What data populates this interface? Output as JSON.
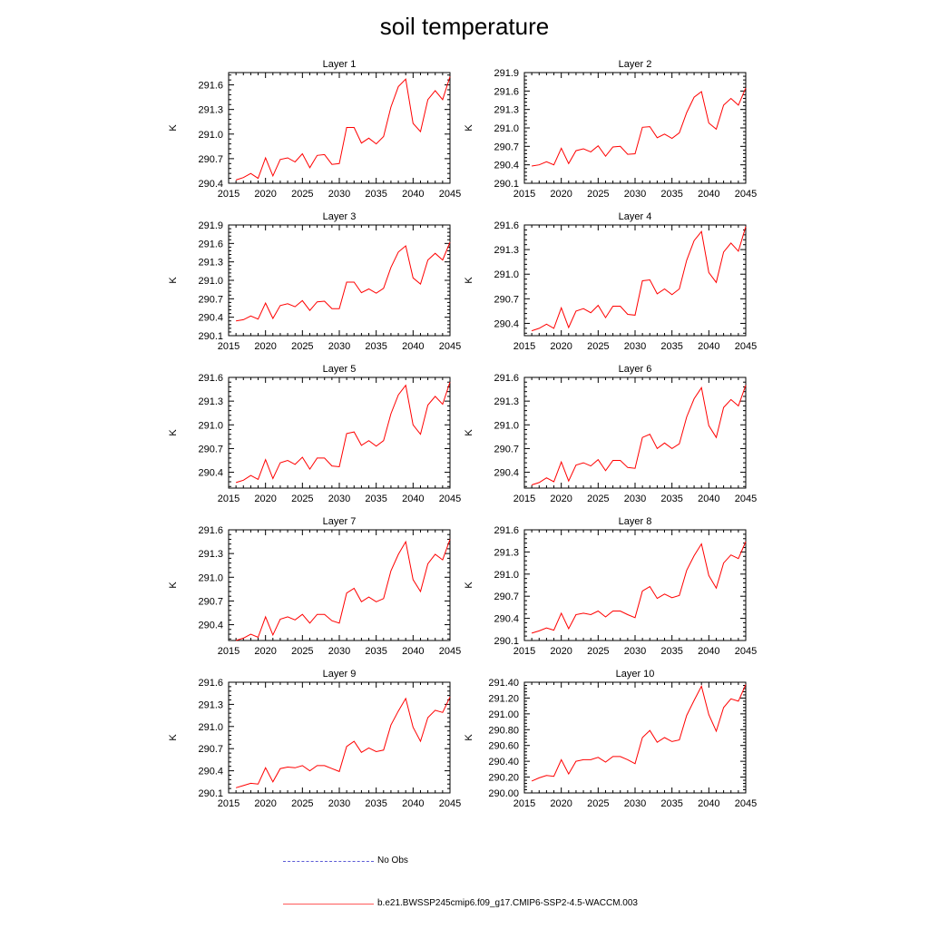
{
  "title": "soil temperature",
  "legend": [
    {
      "label": "No Obs",
      "color": "#5b5bd6",
      "dashed": true
    },
    {
      "label": "b.e21.BWSSP245cmip6.f09_g17.CMIP6-SSP2-4.5-WACCM.003",
      "color": "#ff5a5a",
      "dashed": false
    }
  ],
  "chart_data": [
    {
      "type": "line",
      "title": "Layer 1",
      "xlabel": "",
      "ylabel": "K",
      "xlim": [
        2015,
        2045
      ],
      "ylim": [
        290.4,
        291.75
      ],
      "xticks": [
        "2015",
        "2020",
        "2025",
        "2030",
        "2035",
        "2040",
        "2045"
      ],
      "yticks": [
        "290.4",
        "290.7",
        "291.0",
        "291.3",
        "291.6"
      ],
      "x": [
        2016,
        2017,
        2018,
        2019,
        2020,
        2021,
        2022,
        2023,
        2024,
        2025,
        2026,
        2027,
        2028,
        2029,
        2030,
        2031,
        2032,
        2033,
        2034,
        2035,
        2036,
        2037,
        2038,
        2039,
        2040,
        2041,
        2042,
        2043,
        2044,
        2045
      ],
      "series": [
        {
          "values": [
            290.44,
            290.47,
            290.52,
            290.46,
            290.71,
            290.49,
            290.69,
            290.71,
            290.66,
            290.76,
            290.59,
            290.74,
            290.75,
            290.63,
            290.64,
            291.08,
            291.08,
            290.89,
            290.95,
            290.88,
            290.97,
            291.33,
            291.58,
            291.67,
            291.13,
            291.03,
            291.42,
            291.53,
            291.42,
            291.7
          ],
          "color": "#ff0000"
        }
      ]
    },
    {
      "type": "line",
      "title": "Layer 2",
      "xlabel": "",
      "ylabel": "K",
      "xlim": [
        2015,
        2045
      ],
      "ylim": [
        290.1,
        291.9
      ],
      "xticks": [
        "2015",
        "2020",
        "2025",
        "2030",
        "2035",
        "2040",
        "2045"
      ],
      "yticks": [
        "290.1",
        "290.4",
        "290.7",
        "291.0",
        "291.3",
        "291.6",
        "291.9"
      ],
      "x": [
        2016,
        2017,
        2018,
        2019,
        2020,
        2021,
        2022,
        2023,
        2024,
        2025,
        2026,
        2027,
        2028,
        2029,
        2030,
        2031,
        2032,
        2033,
        2034,
        2035,
        2036,
        2037,
        2038,
        2039,
        2040,
        2041,
        2042,
        2043,
        2044,
        2045
      ],
      "series": [
        {
          "values": [
            290.38,
            290.4,
            290.45,
            290.4,
            290.67,
            290.42,
            290.63,
            290.66,
            290.61,
            290.71,
            290.54,
            290.69,
            290.7,
            290.57,
            290.58,
            291.01,
            291.02,
            290.84,
            290.9,
            290.83,
            290.92,
            291.25,
            291.5,
            291.59,
            291.08,
            290.98,
            291.37,
            291.48,
            291.37,
            291.65
          ],
          "color": "#ff0000"
        }
      ]
    },
    {
      "type": "line",
      "title": "Layer 3",
      "xlabel": "",
      "ylabel": "K",
      "xlim": [
        2015,
        2045
      ],
      "ylim": [
        290.1,
        291.9
      ],
      "xticks": [
        "2015",
        "2020",
        "2025",
        "2030",
        "2035",
        "2040",
        "2045"
      ],
      "yticks": [
        "290.1",
        "290.4",
        "290.7",
        "291.0",
        "291.3",
        "291.6",
        "291.9"
      ],
      "x": [
        2016,
        2017,
        2018,
        2019,
        2020,
        2021,
        2022,
        2023,
        2024,
        2025,
        2026,
        2027,
        2028,
        2029,
        2030,
        2031,
        2032,
        2033,
        2034,
        2035,
        2036,
        2037,
        2038,
        2039,
        2040,
        2041,
        2042,
        2043,
        2044,
        2045
      ],
      "series": [
        {
          "values": [
            290.34,
            290.36,
            290.42,
            290.37,
            290.63,
            290.38,
            290.59,
            290.62,
            290.57,
            290.67,
            290.51,
            290.65,
            290.66,
            290.54,
            290.54,
            290.97,
            290.97,
            290.8,
            290.86,
            290.79,
            290.87,
            291.21,
            291.46,
            291.56,
            291.04,
            290.94,
            291.33,
            291.44,
            291.33,
            291.62
          ],
          "color": "#ff0000"
        }
      ]
    },
    {
      "type": "line",
      "title": "Layer 4",
      "xlabel": "",
      "ylabel": "K",
      "xlim": [
        2015,
        2045
      ],
      "ylim": [
        290.25,
        291.6
      ],
      "xticks": [
        "2015",
        "2020",
        "2025",
        "2030",
        "2035",
        "2040",
        "2045"
      ],
      "yticks": [
        "290.4",
        "290.7",
        "291.0",
        "291.3",
        "291.6"
      ],
      "x": [
        2016,
        2017,
        2018,
        2019,
        2020,
        2021,
        2022,
        2023,
        2024,
        2025,
        2026,
        2027,
        2028,
        2029,
        2030,
        2031,
        2032,
        2033,
        2034,
        2035,
        2036,
        2037,
        2038,
        2039,
        2040,
        2041,
        2042,
        2043,
        2044,
        2045
      ],
      "series": [
        {
          "values": [
            290.31,
            290.34,
            290.39,
            290.34,
            290.59,
            290.35,
            290.55,
            290.58,
            290.53,
            290.62,
            290.47,
            290.61,
            290.61,
            290.51,
            290.5,
            290.92,
            290.93,
            290.76,
            290.82,
            290.75,
            290.82,
            291.17,
            291.41,
            291.52,
            291.02,
            290.9,
            291.27,
            291.38,
            291.28,
            291.58
          ],
          "color": "#ff0000"
        }
      ]
    },
    {
      "type": "line",
      "title": "Layer 5",
      "xlabel": "",
      "ylabel": "K",
      "xlim": [
        2015,
        2045
      ],
      "ylim": [
        290.2,
        291.6
      ],
      "xticks": [
        "2015",
        "2020",
        "2025",
        "2030",
        "2035",
        "2040",
        "2045"
      ],
      "yticks": [
        "290.4",
        "290.7",
        "291.0",
        "291.3",
        "291.6"
      ],
      "x": [
        2016,
        2017,
        2018,
        2019,
        2020,
        2021,
        2022,
        2023,
        2024,
        2025,
        2026,
        2027,
        2028,
        2029,
        2030,
        2031,
        2032,
        2033,
        2034,
        2035,
        2036,
        2037,
        2038,
        2039,
        2040,
        2041,
        2042,
        2043,
        2044,
        2045
      ],
      "series": [
        {
          "values": [
            290.27,
            290.3,
            290.36,
            290.31,
            290.56,
            290.32,
            290.52,
            290.55,
            290.5,
            290.59,
            290.44,
            290.58,
            290.58,
            290.48,
            290.47,
            290.89,
            290.91,
            290.74,
            290.8,
            290.73,
            290.8,
            291.14,
            291.38,
            291.5,
            291.0,
            290.88,
            291.25,
            291.36,
            291.26,
            291.54
          ],
          "color": "#ff0000"
        }
      ]
    },
    {
      "type": "line",
      "title": "Layer 6",
      "xlabel": "",
      "ylabel": "K",
      "xlim": [
        2015,
        2045
      ],
      "ylim": [
        290.2,
        291.6
      ],
      "xticks": [
        "2015",
        "2020",
        "2025",
        "2030",
        "2035",
        "2040",
        "2045"
      ],
      "yticks": [
        "290.4",
        "290.7",
        "291.0",
        "291.3",
        "291.6"
      ],
      "x": [
        2016,
        2017,
        2018,
        2019,
        2020,
        2021,
        2022,
        2023,
        2024,
        2025,
        2026,
        2027,
        2028,
        2029,
        2030,
        2031,
        2032,
        2033,
        2034,
        2035,
        2036,
        2037,
        2038,
        2039,
        2040,
        2041,
        2042,
        2043,
        2044,
        2045
      ],
      "series": [
        {
          "values": [
            290.24,
            290.27,
            290.33,
            290.28,
            290.53,
            290.29,
            290.49,
            290.52,
            290.48,
            290.56,
            290.42,
            290.55,
            290.55,
            290.46,
            290.45,
            290.84,
            290.88,
            290.7,
            290.77,
            290.7,
            290.76,
            291.1,
            291.33,
            291.47,
            290.99,
            290.84,
            291.22,
            291.32,
            291.24,
            291.5
          ],
          "color": "#ff0000"
        }
      ]
    },
    {
      "type": "line",
      "title": "Layer 7",
      "xlabel": "",
      "ylabel": "K",
      "xlim": [
        2015,
        2045
      ],
      "ylim": [
        290.2,
        291.6
      ],
      "xticks": [
        "2015",
        "2020",
        "2025",
        "2030",
        "2035",
        "2040",
        "2045"
      ],
      "yticks": [
        "290.4",
        "290.7",
        "291.0",
        "291.3",
        "291.6"
      ],
      "x": [
        2016,
        2017,
        2018,
        2019,
        2020,
        2021,
        2022,
        2023,
        2024,
        2025,
        2026,
        2027,
        2028,
        2029,
        2030,
        2031,
        2032,
        2033,
        2034,
        2035,
        2036,
        2037,
        2038,
        2039,
        2040,
        2041,
        2042,
        2043,
        2044,
        2045
      ],
      "series": [
        {
          "values": [
            290.2,
            290.23,
            290.28,
            290.24,
            290.5,
            290.27,
            290.47,
            290.5,
            290.46,
            290.53,
            290.42,
            290.53,
            290.53,
            290.45,
            290.42,
            290.8,
            290.86,
            290.69,
            290.75,
            290.69,
            290.73,
            291.08,
            291.29,
            291.45,
            290.97,
            290.82,
            291.17,
            291.29,
            291.22,
            291.48
          ],
          "color": "#ff0000"
        }
      ]
    },
    {
      "type": "line",
      "title": "Layer 8",
      "xlabel": "",
      "ylabel": "K",
      "xlim": [
        2015,
        2045
      ],
      "ylim": [
        290.1,
        291.6
      ],
      "xticks": [
        "2015",
        "2020",
        "2025",
        "2030",
        "2035",
        "2040",
        "2045"
      ],
      "yticks": [
        "290.1",
        "290.4",
        "290.7",
        "291.0",
        "291.3",
        "291.6"
      ],
      "x": [
        2016,
        2017,
        2018,
        2019,
        2020,
        2021,
        2022,
        2023,
        2024,
        2025,
        2026,
        2027,
        2028,
        2029,
        2030,
        2031,
        2032,
        2033,
        2034,
        2035,
        2036,
        2037,
        2038,
        2039,
        2040,
        2041,
        2042,
        2043,
        2044,
        2045
      ],
      "series": [
        {
          "values": [
            290.2,
            290.23,
            290.27,
            290.24,
            290.47,
            290.26,
            290.45,
            290.47,
            290.45,
            290.5,
            290.42,
            290.5,
            290.5,
            290.45,
            290.41,
            290.77,
            290.83,
            290.67,
            290.73,
            290.68,
            290.71,
            291.05,
            291.25,
            291.41,
            290.98,
            290.81,
            291.15,
            291.26,
            291.21,
            291.44
          ],
          "color": "#ff0000"
        }
      ]
    },
    {
      "type": "line",
      "title": "Layer 9",
      "xlabel": "",
      "ylabel": "K",
      "xlim": [
        2015,
        2045
      ],
      "ylim": [
        290.1,
        291.6
      ],
      "xticks": [
        "2015",
        "2020",
        "2025",
        "2030",
        "2035",
        "2040",
        "2045"
      ],
      "yticks": [
        "290.1",
        "290.4",
        "290.7",
        "291.0",
        "291.3",
        "291.6"
      ],
      "x": [
        2016,
        2017,
        2018,
        2019,
        2020,
        2021,
        2022,
        2023,
        2024,
        2025,
        2026,
        2027,
        2028,
        2029,
        2030,
        2031,
        2032,
        2033,
        2034,
        2035,
        2036,
        2037,
        2038,
        2039,
        2040,
        2041,
        2042,
        2043,
        2044,
        2045
      ],
      "series": [
        {
          "values": [
            290.17,
            290.2,
            290.23,
            290.22,
            290.44,
            290.25,
            290.43,
            290.45,
            290.44,
            290.47,
            290.4,
            290.47,
            290.47,
            290.43,
            290.39,
            290.73,
            290.8,
            290.65,
            290.71,
            290.66,
            290.68,
            291.02,
            291.21,
            291.38,
            290.99,
            290.8,
            291.12,
            291.22,
            291.19,
            291.4
          ],
          "color": "#ff0000"
        }
      ]
    },
    {
      "type": "line",
      "title": "Layer 10",
      "xlabel": "",
      "ylabel": "K",
      "xlim": [
        2015,
        2045
      ],
      "ylim": [
        290.0,
        291.4
      ],
      "xticks": [
        "2015",
        "2020",
        "2025",
        "2030",
        "2035",
        "2040",
        "2045"
      ],
      "yticks": [
        "290.00",
        "290.20",
        "290.40",
        "290.60",
        "290.80",
        "291.00",
        "291.20",
        "291.40"
      ],
      "x": [
        2016,
        2017,
        2018,
        2019,
        2020,
        2021,
        2022,
        2023,
        2024,
        2025,
        2026,
        2027,
        2028,
        2029,
        2030,
        2031,
        2032,
        2033,
        2034,
        2035,
        2036,
        2037,
        2038,
        2039,
        2040,
        2041,
        2042,
        2043,
        2044,
        2045
      ],
      "series": [
        {
          "values": [
            290.15,
            290.19,
            290.22,
            290.21,
            290.42,
            290.24,
            290.4,
            290.42,
            290.42,
            290.45,
            290.39,
            290.46,
            290.46,
            290.42,
            290.37,
            290.7,
            290.79,
            290.64,
            290.7,
            290.65,
            290.67,
            290.98,
            291.17,
            291.35,
            290.99,
            290.78,
            291.08,
            291.19,
            291.16,
            291.37
          ],
          "color": "#ff0000"
        }
      ]
    }
  ]
}
